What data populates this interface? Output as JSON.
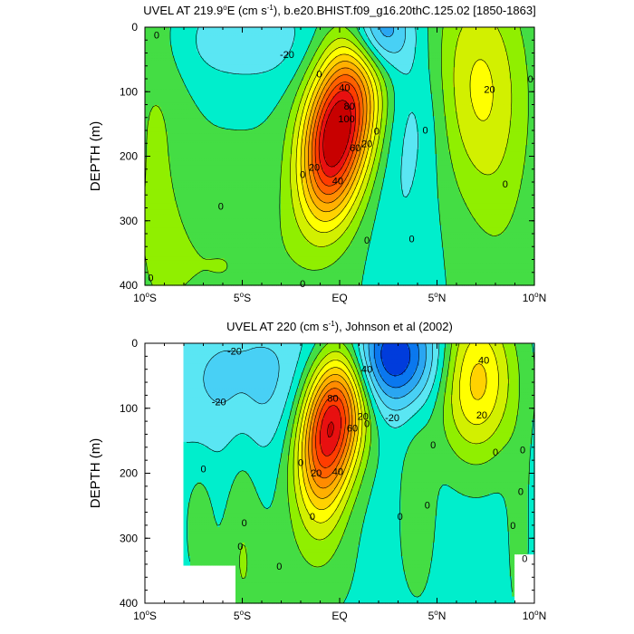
{
  "chart_data": [
    {
      "type": "heatmap",
      "id": "model",
      "title_parts": [
        "UVEL AT 219.9",
        "o",
        "E (cm s",
        "-1",
        "), b.e20.BHIST.f09_g16.20thC.125.02 [1850-1863]"
      ],
      "ylabel": "DEPTH (m)",
      "x_ticks": [
        {
          "value": -10,
          "label": "10",
          "sup": "o",
          "suffix": "S"
        },
        {
          "value": -5,
          "label": "5",
          "sup": "o",
          "suffix": "S"
        },
        {
          "value": 0,
          "label": "EQ",
          "sup": "",
          "suffix": ""
        },
        {
          "value": 5,
          "label": "5",
          "sup": "o",
          "suffix": "N"
        },
        {
          "value": 10,
          "label": "10",
          "sup": "o",
          "suffix": "N"
        }
      ],
      "y_ticks": [
        0,
        100,
        200,
        300,
        400
      ],
      "xlim": [
        -10,
        10
      ],
      "ylim": [
        0,
        400
      ],
      "y_reversed": true,
      "background_level": 0,
      "data_xlim": [
        -10,
        10
      ],
      "features": [
        {
          "x": 0.05,
          "y": 150,
          "sx": 1.25,
          "sy": 95,
          "amp": 106,
          "rot": 0.5
        },
        {
          "x": -0.7,
          "y": 215,
          "sx": 0.9,
          "sy": 70,
          "amp": 18
        },
        {
          "x": 7.1,
          "y": 85,
          "sx": 1.6,
          "sy": 115,
          "amp": 30
        },
        {
          "x": 8.2,
          "y": 260,
          "sx": 1.3,
          "sy": 130,
          "amp": 8
        },
        {
          "x": -9.4,
          "y": 130,
          "sx": 1.1,
          "sy": 230,
          "amp": 11
        },
        {
          "x": -6.0,
          "y": 370,
          "sx": 3.0,
          "sy": 90,
          "amp": 10
        },
        {
          "x": 2.0,
          "y": 5,
          "sx": 1.1,
          "sy": 45,
          "amp": -46
        },
        {
          "x": -4.8,
          "y": 20,
          "sx": 3.3,
          "sy": 55,
          "amp": -16
        },
        {
          "x": 3.2,
          "y": 270,
          "sx": 1.2,
          "sy": 130,
          "amp": -9
        },
        {
          "x": 4.0,
          "y": 130,
          "sx": 1.2,
          "sy": 80,
          "amp": -10
        }
      ],
      "mask": [],
      "contour_labels": [
        {
          "x": -9.4,
          "y": 12,
          "text": "0"
        },
        {
          "x": -2.7,
          "y": 42,
          "text": "-20"
        },
        {
          "x": -1.05,
          "y": 72,
          "text": "0"
        },
        {
          "x": 0.25,
          "y": 93,
          "text": "40"
        },
        {
          "x": 0.5,
          "y": 122,
          "text": "80"
        },
        {
          "x": 0.35,
          "y": 142,
          "text": "100"
        },
        {
          "x": 0.8,
          "y": 187,
          "text": "60"
        },
        {
          "x": 1.4,
          "y": 180,
          "text": "20"
        },
        {
          "x": 1.9,
          "y": 161,
          "text": "0"
        },
        {
          "x": -1.3,
          "y": 217,
          "text": "20"
        },
        {
          "x": -1.9,
          "y": 228,
          "text": "0"
        },
        {
          "x": -0.1,
          "y": 238,
          "text": "40"
        },
        {
          "x": -6.1,
          "y": 277,
          "text": "0"
        },
        {
          "x": 1.4,
          "y": 330,
          "text": "0"
        },
        {
          "x": 3.7,
          "y": 328,
          "text": "0"
        },
        {
          "x": 4.4,
          "y": 159,
          "text": "0"
        },
        {
          "x": 7.7,
          "y": 96,
          "text": "20"
        },
        {
          "x": 9.8,
          "y": 80,
          "text": "0"
        },
        {
          "x": 8.5,
          "y": 243,
          "text": "0"
        },
        {
          "x": -1.9,
          "y": 397,
          "text": "0"
        },
        {
          "x": -9.7,
          "y": 388,
          "text": "0"
        }
      ]
    },
    {
      "type": "heatmap",
      "id": "obs",
      "title_parts": [
        "UVEL AT 220 (cm s",
        "-1",
        "), Johnson et al (2002)"
      ],
      "ylabel": "DEPTH (m)",
      "x_ticks": [
        {
          "value": -10,
          "label": "10",
          "sup": "o",
          "suffix": "S"
        },
        {
          "value": -5,
          "label": "5",
          "sup": "o",
          "suffix": "S"
        },
        {
          "value": 0,
          "label": "EQ",
          "sup": "",
          "suffix": ""
        },
        {
          "value": 5,
          "label": "5",
          "sup": "o",
          "suffix": "N"
        },
        {
          "value": 10,
          "label": "10",
          "sup": "o",
          "suffix": "N"
        }
      ],
      "y_ticks": [
        0,
        100,
        200,
        300,
        400
      ],
      "xlim": [
        -10,
        10
      ],
      "ylim": [
        0,
        400
      ],
      "y_reversed": true,
      "background_level": -5,
      "data_xlim": [
        -8,
        10
      ],
      "features": [
        {
          "x": -0.3,
          "y": 112,
          "sx": 1.15,
          "sy": 85,
          "amp": 105,
          "rot": 0.45
        },
        {
          "x": -0.9,
          "y": 215,
          "sx": 0.9,
          "sy": 85,
          "amp": 20
        },
        {
          "x": 7.0,
          "y": 55,
          "sx": 1.4,
          "sy": 85,
          "amp": 50
        },
        {
          "x": 2.5,
          "y": 20,
          "sx": 1.9,
          "sy": 55,
          "amp": -57
        },
        {
          "x": -4.8,
          "y": 55,
          "sx": 3.2,
          "sy": 80,
          "amp": -19
        },
        {
          "x": 4.0,
          "y": 255,
          "sx": 0.6,
          "sy": 90,
          "amp": 14
        },
        {
          "x": -5.0,
          "y": 285,
          "sx": 0.6,
          "sy": 140,
          "amp": 10
        },
        {
          "x": -7.2,
          "y": 265,
          "sx": 0.5,
          "sy": 60,
          "amp": 9
        },
        {
          "x": 9.2,
          "y": 300,
          "sx": 0.5,
          "sy": 120,
          "amp": 8
        },
        {
          "x": -3.0,
          "y": 360,
          "sx": 3.0,
          "sy": 80,
          "amp": 8
        }
      ],
      "mask": [
        {
          "x0": -10,
          "x1": -8,
          "y0": 0,
          "y1": 400
        },
        {
          "x0": -8,
          "x1": -5.3,
          "y0": 340,
          "y1": 400
        },
        {
          "x0": 9.0,
          "x1": 10,
          "y0": 325,
          "y1": 400
        }
      ],
      "contour_labels": [
        {
          "x": -5.4,
          "y": 12,
          "text": "-20"
        },
        {
          "x": 1.4,
          "y": 40,
          "text": "40"
        },
        {
          "x": 7.4,
          "y": 26,
          "text": "40"
        },
        {
          "x": -6.2,
          "y": 90,
          "text": "-20"
        },
        {
          "x": -0.35,
          "y": 84,
          "text": "80"
        },
        {
          "x": 0.65,
          "y": 130,
          "text": "60"
        },
        {
          "x": 1.2,
          "y": 112,
          "text": "20"
        },
        {
          "x": 2.7,
          "y": 114,
          "text": "-20"
        },
        {
          "x": 1.4,
          "y": 123,
          "text": "0"
        },
        {
          "x": 7.3,
          "y": 110,
          "text": "20"
        },
        {
          "x": 4.8,
          "y": 156,
          "text": "0"
        },
        {
          "x": 8.0,
          "y": 167,
          "text": "0"
        },
        {
          "x": 9.4,
          "y": 164,
          "text": "0"
        },
        {
          "x": -2.0,
          "y": 183,
          "text": "0"
        },
        {
          "x": -1.2,
          "y": 199,
          "text": "20"
        },
        {
          "x": -0.1,
          "y": 197,
          "text": "40"
        },
        {
          "x": -7.0,
          "y": 193,
          "text": "0"
        },
        {
          "x": 9.3,
          "y": 228,
          "text": "0"
        },
        {
          "x": 4.5,
          "y": 249,
          "text": "0"
        },
        {
          "x": -1.4,
          "y": 266,
          "text": "0"
        },
        {
          "x": 3.1,
          "y": 266,
          "text": "0"
        },
        {
          "x": -4.9,
          "y": 276,
          "text": "0"
        },
        {
          "x": 8.9,
          "y": 280,
          "text": "0"
        },
        {
          "x": -5.1,
          "y": 312,
          "text": "0"
        },
        {
          "x": 9.5,
          "y": 331,
          "text": "0"
        },
        {
          "x": -3.1,
          "y": 343,
          "text": "0"
        }
      ]
    }
  ],
  "colorscale": {
    "levels": [
      -60,
      -50,
      -40,
      -30,
      -20,
      -10,
      0,
      10,
      20,
      30,
      40,
      50,
      60,
      70,
      80,
      90,
      100
    ],
    "colors": [
      "#0020b0",
      "#003cdc",
      "#0a78ef",
      "#2aa6f2",
      "#48d0f5",
      "#5ae6f3",
      "#00eecc",
      "#44dd44",
      "#90ef00",
      "#d2f000",
      "#ffff00",
      "#ffd200",
      "#ffb000",
      "#ff8c00",
      "#ff6000",
      "#ff3c00",
      "#e81010",
      "#c80000"
    ],
    "line_color": "#000000"
  }
}
